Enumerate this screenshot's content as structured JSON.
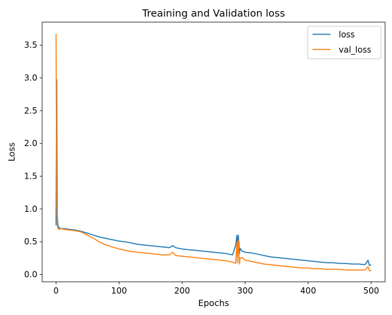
{
  "chart_data": {
    "type": "line",
    "title": "Treaining and Validation loss",
    "xlabel": "Epochs",
    "ylabel": "Loss",
    "xlim": [
      -22,
      522
    ],
    "ylim": [
      -0.11,
      3.85
    ],
    "xticks": [
      0,
      100,
      200,
      300,
      400,
      500
    ],
    "xtick_labels": [
      "0",
      "100",
      "200",
      "300",
      "400",
      "500"
    ],
    "yticks": [
      0.0,
      0.5,
      1.0,
      1.5,
      2.0,
      2.5,
      3.0,
      3.5
    ],
    "ytick_labels": [
      "0.0",
      "0.5",
      "1.0",
      "1.5",
      "2.0",
      "2.5",
      "3.0",
      "3.5"
    ],
    "grid": false,
    "legend_position": "top-right",
    "series": [
      {
        "name": "loss",
        "color": "#1f77b4",
        "x": [
          0,
          1,
          2,
          3,
          5,
          8,
          12,
          20,
          30,
          40,
          50,
          60,
          70,
          80,
          90,
          100,
          110,
          120,
          130,
          140,
          150,
          160,
          170,
          180,
          185,
          190,
          200,
          210,
          220,
          230,
          240,
          250,
          260,
          270,
          280,
          285,
          287,
          288,
          289,
          290,
          291,
          292,
          295,
          300,
          310,
          320,
          330,
          340,
          350,
          360,
          370,
          380,
          390,
          400,
          410,
          420,
          430,
          440,
          450,
          460,
          470,
          480,
          490,
          495,
          497,
          500
        ],
        "y": [
          0.75,
          2.97,
          0.9,
          0.75,
          0.71,
          0.7,
          0.7,
          0.69,
          0.68,
          0.66,
          0.63,
          0.6,
          0.57,
          0.55,
          0.53,
          0.51,
          0.5,
          0.48,
          0.46,
          0.45,
          0.44,
          0.43,
          0.42,
          0.41,
          0.44,
          0.41,
          0.39,
          0.38,
          0.37,
          0.36,
          0.35,
          0.34,
          0.33,
          0.32,
          0.3,
          0.45,
          0.6,
          0.3,
          0.6,
          0.5,
          0.32,
          0.4,
          0.36,
          0.34,
          0.33,
          0.31,
          0.29,
          0.27,
          0.26,
          0.25,
          0.24,
          0.23,
          0.22,
          0.21,
          0.2,
          0.19,
          0.18,
          0.18,
          0.17,
          0.17,
          0.16,
          0.16,
          0.15,
          0.22,
          0.14,
          0.15
        ]
      },
      {
        "name": "val_loss",
        "color": "#ff7f0e",
        "x": [
          0,
          1,
          2,
          3,
          5,
          8,
          12,
          20,
          30,
          40,
          50,
          60,
          70,
          80,
          90,
          100,
          110,
          120,
          130,
          140,
          150,
          160,
          170,
          180,
          185,
          190,
          200,
          210,
          220,
          230,
          240,
          250,
          260,
          270,
          280,
          285,
          287,
          288,
          289,
          290,
          291,
          292,
          295,
          300,
          310,
          320,
          330,
          340,
          350,
          360,
          370,
          380,
          390,
          400,
          410,
          420,
          430,
          440,
          450,
          460,
          470,
          480,
          490,
          495,
          497,
          500
        ],
        "y": [
          3.67,
          1.2,
          0.75,
          0.7,
          0.69,
          0.7,
          0.69,
          0.68,
          0.67,
          0.65,
          0.6,
          0.55,
          0.49,
          0.45,
          0.42,
          0.39,
          0.37,
          0.35,
          0.34,
          0.33,
          0.32,
          0.31,
          0.3,
          0.3,
          0.34,
          0.29,
          0.28,
          0.27,
          0.26,
          0.25,
          0.24,
          0.23,
          0.22,
          0.21,
          0.19,
          0.17,
          0.5,
          0.18,
          0.53,
          0.4,
          0.16,
          0.25,
          0.26,
          0.22,
          0.2,
          0.18,
          0.16,
          0.15,
          0.14,
          0.13,
          0.12,
          0.11,
          0.1,
          0.1,
          0.09,
          0.09,
          0.08,
          0.08,
          0.08,
          0.07,
          0.07,
          0.07,
          0.07,
          0.12,
          0.06,
          0.06
        ]
      }
    ]
  }
}
